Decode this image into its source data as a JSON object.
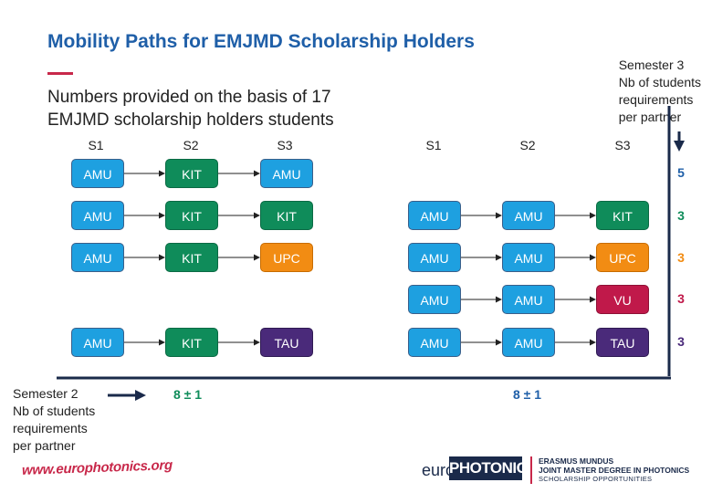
{
  "title": "Mobility Paths for EMJMD Scholarship Holders",
  "subtitle_lines": [
    "Numbers provided on the basis of 17",
    "EMJMD scholarship holders students"
  ],
  "semester3_note": [
    "Semester 3",
    "Nb of students",
    "requirements",
    "per partner"
  ],
  "semester2_note": [
    "Semester 2",
    "Nb of students",
    "requirements",
    "per partner"
  ],
  "column_headers": [
    "S1",
    "S2",
    "S3"
  ],
  "colors": {
    "AMU": "#1ea0e0",
    "KIT": "#0f8c5a",
    "UPC": "#f28c13",
    "VU": "#c0194a",
    "TAU": "#4a2a7a",
    "title": "#1f5fa8",
    "accent": "#c8284a",
    "axis": "#1a2a4a"
  },
  "left_paths": [
    [
      "AMU",
      "KIT",
      "AMU"
    ],
    [
      "AMU",
      "KIT",
      "KIT"
    ],
    [
      "AMU",
      "KIT",
      "UPC"
    ],
    [
      "AMU",
      "KIT",
      "TAU"
    ]
  ],
  "right_paths": [
    [
      "AMU",
      "AMU",
      "KIT"
    ],
    [
      "AMU",
      "AMU",
      "UPC"
    ],
    [
      "AMU",
      "AMU",
      "VU"
    ],
    [
      "AMU",
      "AMU",
      "TAU"
    ]
  ],
  "s3_counts": [
    {
      "value": "5",
      "color": "#1f5fa8"
    },
    {
      "value": "3",
      "color": "#0f8c5a"
    },
    {
      "value": "3",
      "color": "#f28c13"
    },
    {
      "value": "3",
      "color": "#c0194a"
    },
    {
      "value": "3",
      "color": "#4a2a7a"
    }
  ],
  "s2_left_sum": "8 ± 1",
  "s2_right_sum": "8 ± 1",
  "footer": {
    "url": "www.europhotonics.org",
    "logo_euro": "euro",
    "logo_photonics": "PHOTONICS",
    "logo_line1": "ERASMUS MUNDUS",
    "logo_line2": "JOINT MASTER DEGREE IN PHOTONICS",
    "logo_line3": "SCHOLARSHIP OPPORTUNITIES"
  }
}
